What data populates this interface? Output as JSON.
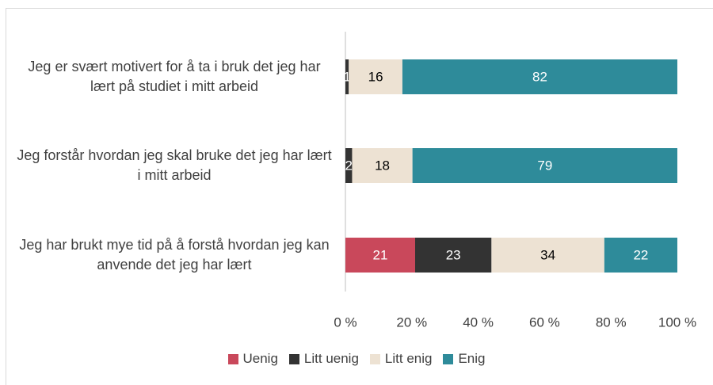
{
  "chart_data": {
    "type": "bar",
    "orientation": "horizontal",
    "stacking": "percent",
    "categories": [
      "Jeg er svært motivert for å ta i bruk det jeg har lært på studiet i mitt arbeid",
      "Jeg forstår hvordan jeg skal bruke det jeg har lært i mitt arbeid",
      "Jeg har brukt mye tid på å forstå hvordan jeg kan anvende det jeg har lært"
    ],
    "series": [
      {
        "name": "Uenig",
        "color": "#c9485b",
        "values": [
          0,
          0,
          21
        ]
      },
      {
        "name": "Litt uenig",
        "color": "#333333",
        "values": [
          1,
          2,
          23
        ]
      },
      {
        "name": "Litt enig",
        "color": "#ede2d3",
        "values": [
          16,
          18,
          34
        ]
      },
      {
        "name": "Enig",
        "color": "#2e8b9a",
        "values": [
          82,
          79,
          22
        ]
      }
    ],
    "xlim": [
      0,
      100
    ],
    "xticks": [
      {
        "value": 0,
        "label": "0 %"
      },
      {
        "value": 20,
        "label": "20 %"
      },
      {
        "value": 40,
        "label": "40 %"
      },
      {
        "value": 60,
        "label": "60 %"
      },
      {
        "value": 80,
        "label": "80 %"
      },
      {
        "value": 100,
        "label": "100 %"
      }
    ],
    "legend": "bottom"
  }
}
